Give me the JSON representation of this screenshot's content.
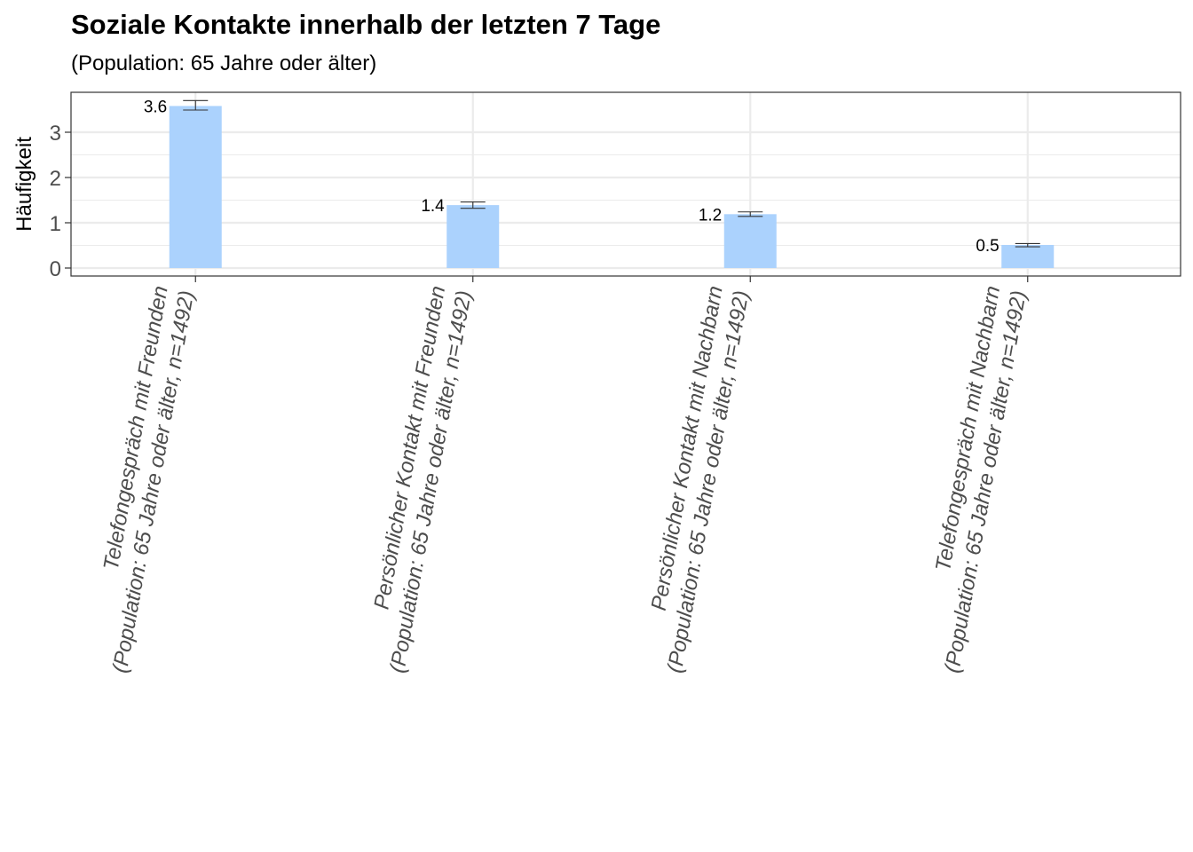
{
  "chart_data": {
    "type": "bar",
    "title": "Soziale Kontakte innerhalb der letzten 7 Tage",
    "subtitle": "(Population: 65 Jahre oder älter)",
    "ylabel": "Häufigkeit",
    "xlabel": "",
    "ylim": [
      -0.17,
      3.87
    ],
    "yticks": [
      0,
      1,
      2,
      3
    ],
    "grid": true,
    "legend": "none",
    "bar_color": "#abd2fd",
    "categories": [
      [
        "Telefongespräch mit Freunden",
        "(Population: 65 Jahre oder älter, n=1492)"
      ],
      [
        "Persönlicher Kontakt mit Freunden",
        "(Population: 65 Jahre oder älter, n=1492)"
      ],
      [
        "Persönlicher Kontakt mit Nachbarn",
        "(Population: 65 Jahre oder älter, n=1492)"
      ],
      [
        "Telefongespräch mit Nachbarn",
        "(Population: 65 Jahre oder älter, n=1492)"
      ]
    ],
    "values": [
      3.58,
      1.39,
      1.19,
      0.51
    ],
    "value_labels": [
      "3.6",
      "1.4",
      "1.2",
      "0.5"
    ],
    "error_low": [
      3.49,
      1.32,
      1.14,
      0.47
    ],
    "error_high": [
      3.7,
      1.46,
      1.24,
      0.54
    ]
  }
}
